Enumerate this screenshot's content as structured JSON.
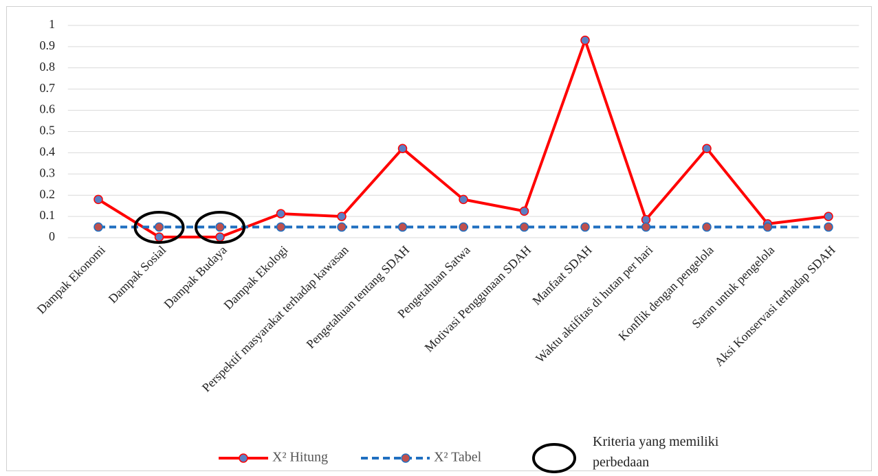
{
  "chart_data": {
    "type": "line",
    "categories": [
      "Dampak Ekonomi",
      "Dampak Sosial",
      "Dampak Budaya",
      "Dampak Ekologi",
      "Perspektif masyarakat terhadap kawasan",
      "Pengetahuan tentang SDAH",
      "Pengetahuan Satwa",
      "Motivasi Penggunaan SDAH",
      "Manfaat SDAH",
      "Waktu aktifitas di hutan per hari",
      "Konflik dengan pengelola",
      "Saran untuk pengelola",
      "Aksi Konservasi terhadap SDAH"
    ],
    "series": [
      {
        "name": "X² Hitung",
        "color": "#ff0000",
        "marker_color": "#5b7fc4",
        "dash": false,
        "values": [
          0.18,
          0.003,
          0.003,
          0.113,
          0.1,
          0.42,
          0.18,
          0.125,
          0.93,
          0.085,
          0.42,
          0.065,
          0.1
        ]
      },
      {
        "name": "X² Tabel",
        "color": "#1f6fc0",
        "marker_color": "#c0504d",
        "dash": true,
        "values": [
          0.05,
          0.05,
          0.05,
          0.05,
          0.05,
          0.05,
          0.05,
          0.05,
          0.05,
          0.05,
          0.05,
          0.05,
          0.05
        ]
      }
    ],
    "highlight": {
      "name": "Kriteria yang memiliki perbedaan",
      "indices": [
        1,
        2
      ]
    },
    "ylim": [
      0,
      1
    ],
    "yticks": [
      0,
      0.1,
      0.2,
      0.3,
      0.4,
      0.5,
      0.6,
      0.7,
      0.8,
      0.9,
      1
    ],
    "grid": true,
    "legend": "bottom"
  }
}
